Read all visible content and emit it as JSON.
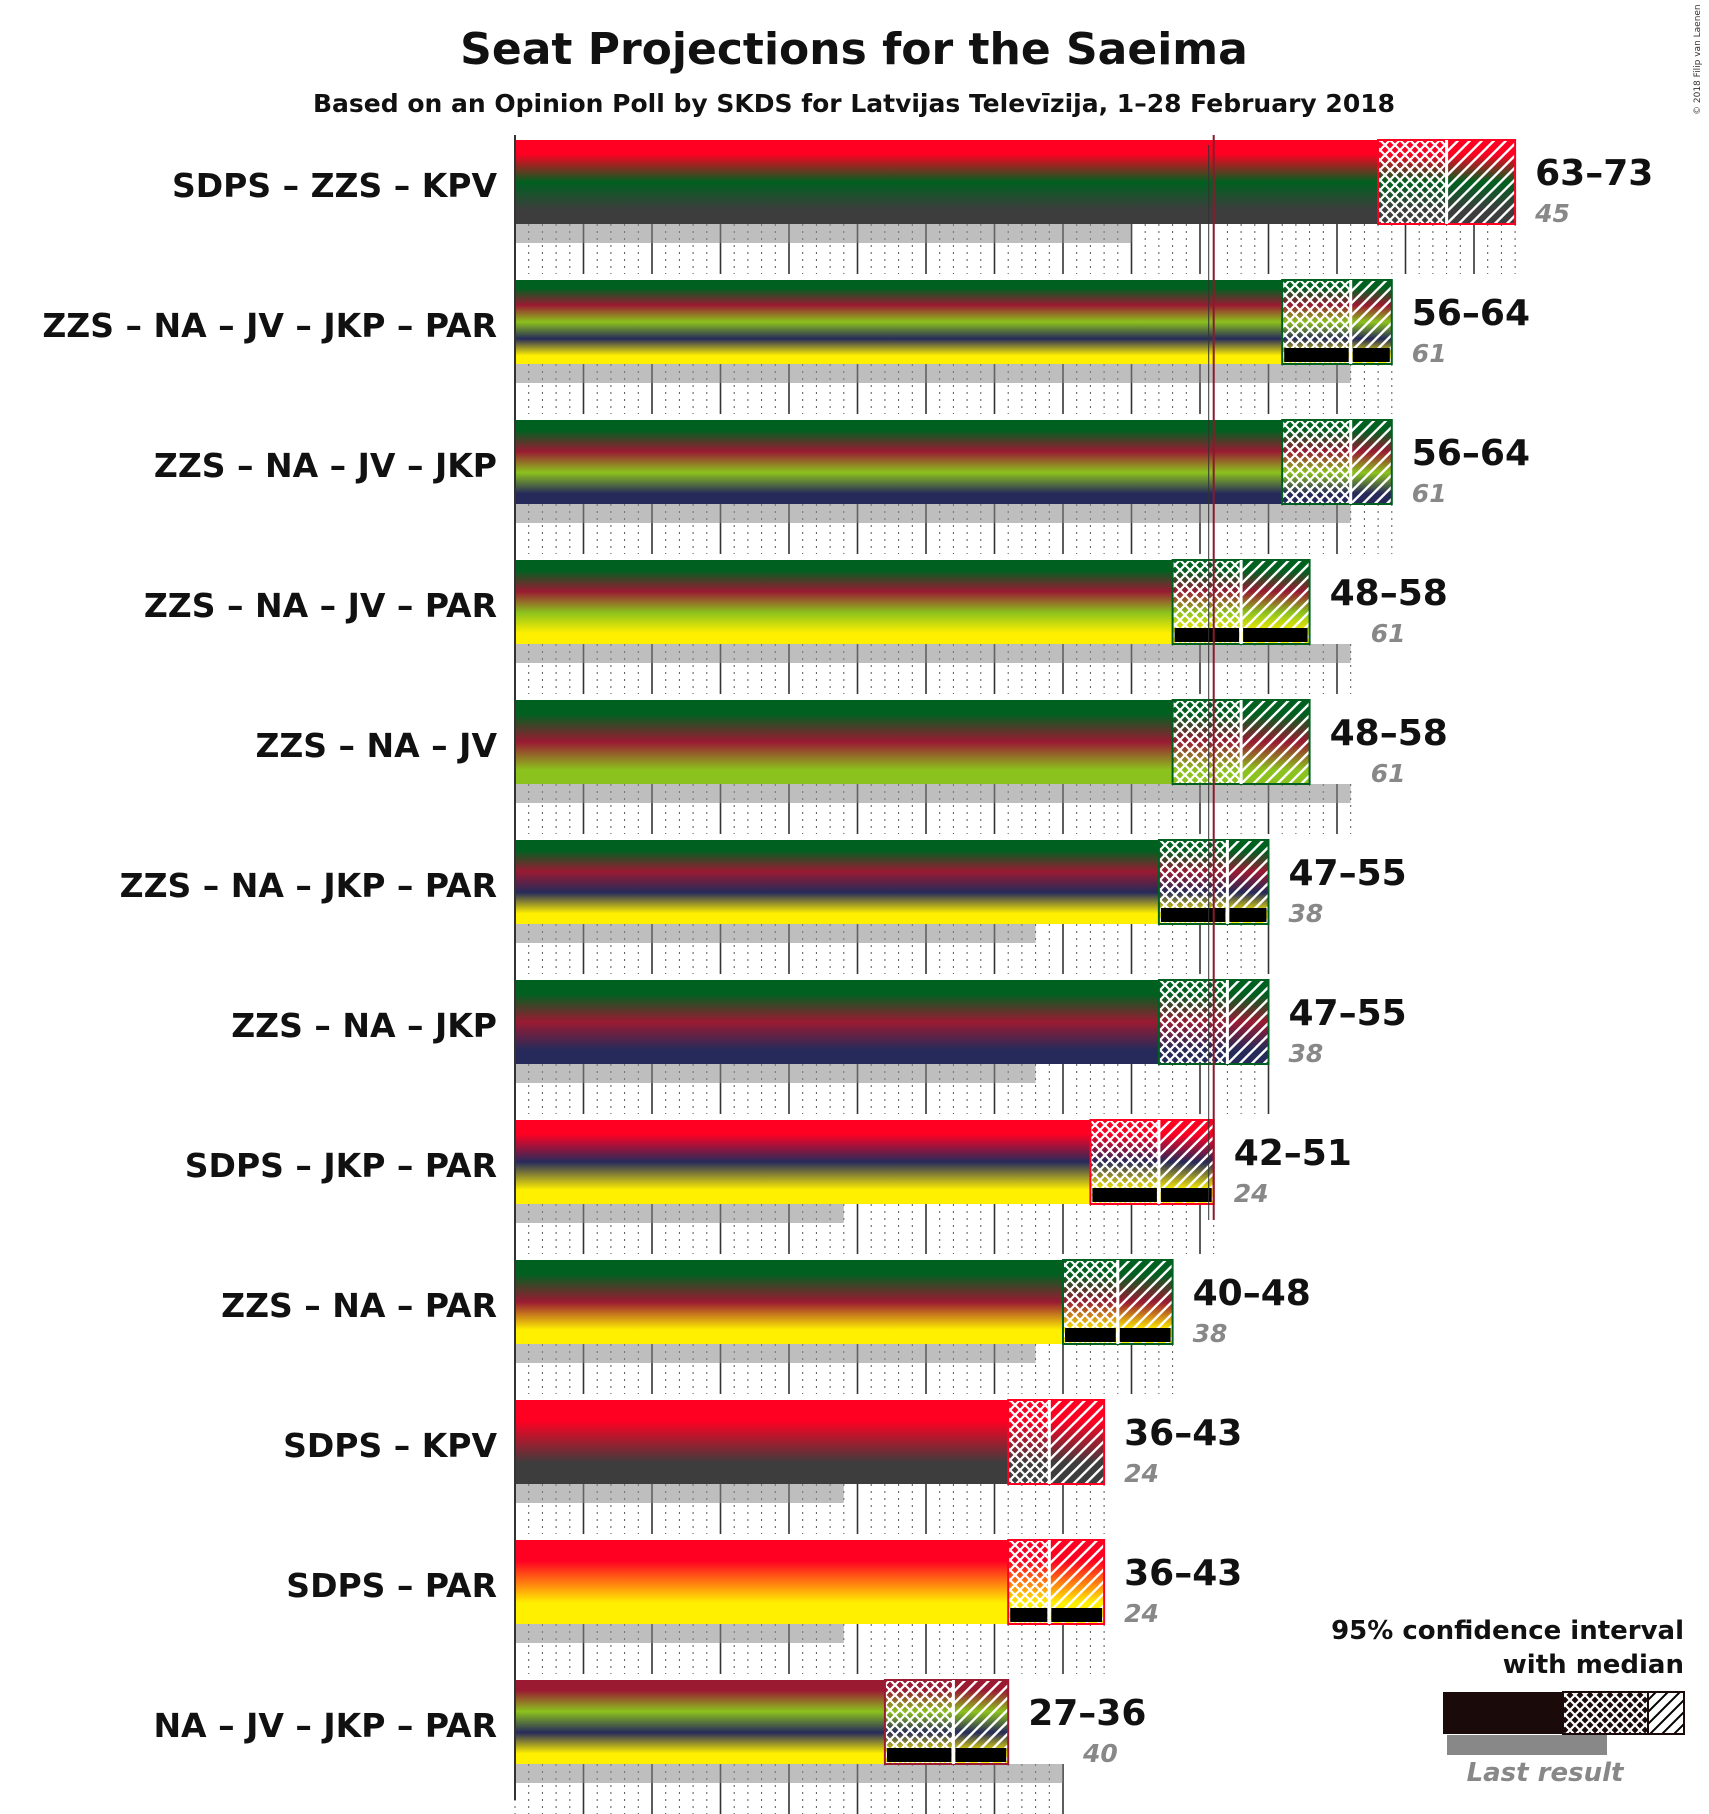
{
  "chart_data": {
    "type": "bar",
    "title": "Seat Projections for the Saeima",
    "subtitle": "Based on an Opinion Poll by SKDS for Latvijas Televīzija, 1–28 February 2018",
    "copyright": "© 2018 Filip van Laenen",
    "majority": 51,
    "party_colors": {
      "SDPS": "#ff0022",
      "ZZS": "#006020",
      "KPV": "#3d3d3d",
      "NA": "#9a1a32",
      "JV": "#8cc21d",
      "JKP": "#262a5a",
      "PAR": "#fff000"
    },
    "coalitions": [
      {
        "label": "SDPS – ZZS – KPV",
        "parties": [
          "SDPS",
          "ZZS",
          "KPV"
        ],
        "low": 63,
        "median": 68,
        "high": 73,
        "last_result": 45,
        "range_label": "63–73",
        "last_label": "45"
      },
      {
        "label": "ZZS – NA – JV – JKP – PAR",
        "parties": [
          "ZZS",
          "NA",
          "JV",
          "JKP",
          "PAR"
        ],
        "low": 56,
        "median": 61,
        "high": 64,
        "last_result": 61,
        "range_label": "56–64",
        "last_label": "61"
      },
      {
        "label": "ZZS – NA – JV – JKP",
        "parties": [
          "ZZS",
          "NA",
          "JV",
          "JKP"
        ],
        "low": 56,
        "median": 61,
        "high": 64,
        "last_result": 61,
        "range_label": "56–64",
        "last_label": "61"
      },
      {
        "label": "ZZS – NA – JV – PAR",
        "parties": [
          "ZZS",
          "NA",
          "JV",
          "PAR"
        ],
        "low": 48,
        "median": 53,
        "high": 58,
        "last_result": 61,
        "range_label": "48–58",
        "last_label": "61"
      },
      {
        "label": "ZZS – NA – JV",
        "parties": [
          "ZZS",
          "NA",
          "JV"
        ],
        "low": 48,
        "median": 53,
        "high": 58,
        "last_result": 61,
        "range_label": "48–58",
        "last_label": "61"
      },
      {
        "label": "ZZS – NA – JKP – PAR",
        "parties": [
          "ZZS",
          "NA",
          "JKP",
          "PAR"
        ],
        "low": 47,
        "median": 52,
        "high": 55,
        "last_result": 38,
        "range_label": "47–55",
        "last_label": "38"
      },
      {
        "label": "ZZS – NA – JKP",
        "parties": [
          "ZZS",
          "NA",
          "JKP"
        ],
        "low": 47,
        "median": 52,
        "high": 55,
        "last_result": 38,
        "range_label": "47–55",
        "last_label": "38"
      },
      {
        "label": "SDPS – JKP – PAR",
        "parties": [
          "SDPS",
          "JKP",
          "PAR"
        ],
        "low": 42,
        "median": 47,
        "high": 51,
        "last_result": 24,
        "range_label": "42–51",
        "last_label": "24"
      },
      {
        "label": "ZZS – NA – PAR",
        "parties": [
          "ZZS",
          "NA",
          "PAR"
        ],
        "low": 40,
        "median": 44,
        "high": 48,
        "last_result": 38,
        "range_label": "40–48",
        "last_label": "38"
      },
      {
        "label": "SDPS – KPV",
        "parties": [
          "SDPS",
          "KPV"
        ],
        "low": 36,
        "median": 39,
        "high": 43,
        "last_result": 24,
        "range_label": "36–43",
        "last_label": "24"
      },
      {
        "label": "SDPS – PAR",
        "parties": [
          "SDPS",
          "PAR"
        ],
        "low": 36,
        "median": 39,
        "high": 43,
        "last_result": 24,
        "range_label": "36–43",
        "last_label": "24"
      },
      {
        "label": "NA – JV – JKP – PAR",
        "parties": [
          "NA",
          "JV",
          "JKP",
          "PAR"
        ],
        "low": 27,
        "median": 32,
        "high": 36,
        "last_result": 40,
        "range_label": "27–36",
        "last_label": "40"
      }
    ],
    "legend": {
      "line1": "95% confidence interval",
      "line2": "with median",
      "last": "Last result"
    },
    "grid": true,
    "legend_position": "bottom-right"
  }
}
